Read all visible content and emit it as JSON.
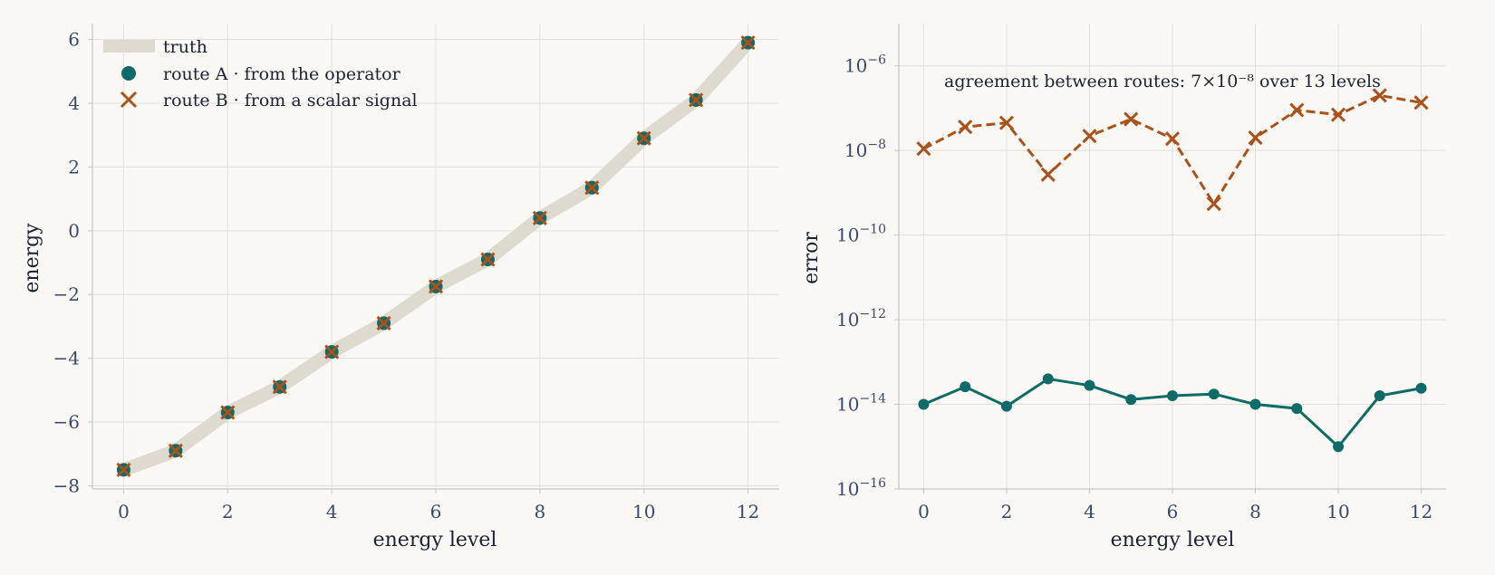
{
  "colors": {
    "background": "#faf8f4",
    "truth": "#dedad0",
    "route_a": "#0f6b68",
    "route_b": "#a9521b",
    "grid": "#e3e0da",
    "spine": "#c9c6bf",
    "tick_text": "#3b4a6b",
    "label_text": "#1c2233"
  },
  "chart_data": [
    {
      "type": "line",
      "xlabel": "energy level",
      "ylabel": "energy",
      "xlim": [
        -0.6,
        12.6
      ],
      "ylim": [
        -8.1,
        6.5
      ],
      "x_ticks": [
        0,
        2,
        4,
        6,
        8,
        10,
        12
      ],
      "y_ticks": [
        -8,
        -6,
        -4,
        -2,
        0,
        2,
        4,
        6
      ],
      "x_tick_labels": [
        "0",
        "2",
        "4",
        "6",
        "8",
        "10",
        "12"
      ],
      "y_tick_labels": [
        "−8",
        "−6",
        "−4",
        "−2",
        "0",
        "2",
        "4",
        "6"
      ],
      "grid": true,
      "legend_position": "top-left",
      "x": [
        0,
        1,
        2,
        3,
        4,
        5,
        6,
        7,
        8,
        9,
        10,
        11,
        12
      ],
      "series": [
        {
          "name": "truth",
          "style": "thick line",
          "values": [
            -7.5,
            -6.9,
            -5.7,
            -4.9,
            -3.8,
            -2.9,
            -1.75,
            -0.9,
            0.4,
            1.35,
            2.9,
            4.1,
            5.9
          ]
        },
        {
          "name": "route A · from the operator",
          "style": "circle markers",
          "values": [
            -7.5,
            -6.9,
            -5.7,
            -4.9,
            -3.8,
            -2.9,
            -1.75,
            -0.9,
            0.4,
            1.35,
            2.9,
            4.1,
            5.9
          ]
        },
        {
          "name": "route B · from a scalar signal",
          "style": "x markers",
          "values": [
            -7.5,
            -6.9,
            -5.7,
            -4.9,
            -3.8,
            -2.9,
            -1.75,
            -0.9,
            0.4,
            1.35,
            2.9,
            4.1,
            5.9
          ]
        }
      ]
    },
    {
      "type": "line",
      "xlabel": "energy level",
      "ylabel": "error",
      "y_scale": "log",
      "xlim": [
        -0.6,
        12.6
      ],
      "ylim": [
        1e-16,
        1e-05
      ],
      "x_ticks": [
        0,
        2,
        4,
        6,
        8,
        10,
        12
      ],
      "x_tick_labels": [
        "0",
        "2",
        "4",
        "6",
        "8",
        "10",
        "12"
      ],
      "y_tick_exponents": [
        -16,
        -14,
        -12,
        -10,
        -8,
        -6
      ],
      "y_tick_base": "10",
      "y_tick_superscripts": [
        "−16",
        "−14",
        "−12",
        "−10",
        "−8",
        "−6"
      ],
      "grid": true,
      "annotation": "agreement between routes: 7×10⁻⁸ over 13 levels",
      "x": [
        0,
        1,
        2,
        3,
        4,
        5,
        6,
        7,
        8,
        9,
        10,
        11,
        12
      ],
      "series": [
        {
          "role": "route_b",
          "style": "dashed line with x markers",
          "values": [
            1.1e-08,
            3.6e-08,
            4.5e-08,
            2.7e-09,
            2.2e-08,
            5.5e-08,
            1.9e-08,
            5.5e-10,
            2e-08,
            9e-08,
            7e-08,
            2e-07,
            1.35e-07
          ]
        },
        {
          "role": "route_a",
          "style": "solid line with circle markers",
          "values": [
            1e-14,
            2.6e-14,
            9e-15,
            4e-14,
            2.8e-14,
            1.3e-14,
            1.6e-14,
            1.75e-14,
            1e-14,
            8e-15,
            1e-15,
            1.6e-14,
            2.4e-14
          ]
        }
      ]
    }
  ]
}
